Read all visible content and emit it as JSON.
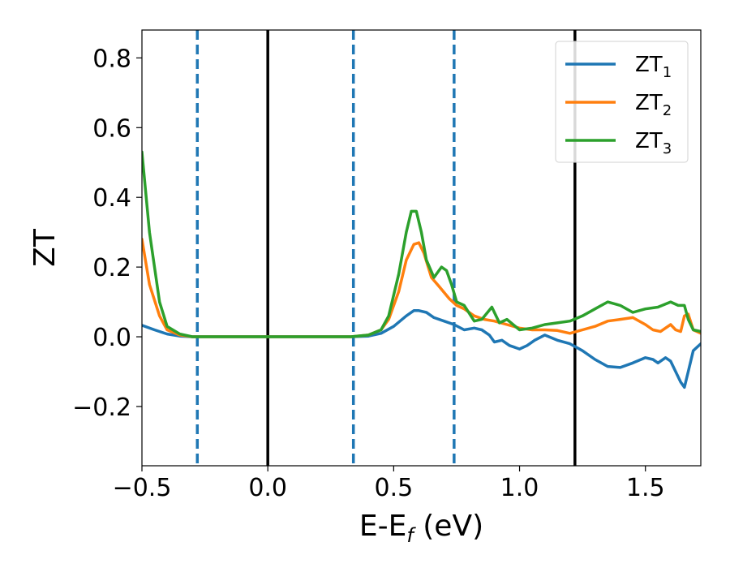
{
  "chart_data": {
    "type": "line",
    "title": "",
    "xlabel": "E-E",
    "xlabel_sub": "f",
    "xlabel_suffix": " (eV)",
    "ylabel": "ZT",
    "xlim": [
      -0.5,
      1.72
    ],
    "ylim": [
      -0.37,
      0.88
    ],
    "xticks": [
      -0.5,
      0.0,
      0.5,
      1.0,
      1.5
    ],
    "xtick_labels": [
      "−0.5",
      "0.0",
      "0.5",
      "1.0",
      "1.5"
    ],
    "yticks": [
      -0.2,
      0.0,
      0.2,
      0.4,
      0.6,
      0.8
    ],
    "ytick_labels": [
      "−0.2",
      "0.0",
      "0.2",
      "0.4",
      "0.6",
      "0.8"
    ],
    "grid": false,
    "legend_position": "top-right",
    "vlines": [
      {
        "x": -0.28,
        "style": "dashed",
        "color": "#1f77b4"
      },
      {
        "x": 0.0,
        "style": "solid",
        "color": "#000000"
      },
      {
        "x": 0.34,
        "style": "dashed",
        "color": "#1f77b4"
      },
      {
        "x": 0.74,
        "style": "dashed",
        "color": "#1f77b4"
      },
      {
        "x": 1.22,
        "style": "solid",
        "color": "#000000"
      }
    ],
    "series": [
      {
        "name": "ZT",
        "sub": "1",
        "color": "#1f77b4",
        "x": [
          -0.5,
          -0.45,
          -0.4,
          -0.35,
          -0.3,
          0.0,
          0.33,
          0.4,
          0.45,
          0.5,
          0.55,
          0.58,
          0.6,
          0.63,
          0.66,
          0.7,
          0.74,
          0.78,
          0.82,
          0.85,
          0.88,
          0.9,
          0.93,
          0.96,
          1.0,
          1.03,
          1.06,
          1.1,
          1.15,
          1.2,
          1.25,
          1.3,
          1.35,
          1.4,
          1.45,
          1.5,
          1.53,
          1.55,
          1.58,
          1.6,
          1.62,
          1.64,
          1.655,
          1.67,
          1.69,
          1.72
        ],
        "y": [
          0.033,
          0.02,
          0.008,
          0.002,
          0.0,
          0.0,
          0.0,
          0.002,
          0.01,
          0.03,
          0.06,
          0.075,
          0.075,
          0.07,
          0.055,
          0.045,
          0.035,
          0.02,
          0.025,
          0.02,
          0.005,
          -0.015,
          -0.01,
          -0.025,
          -0.035,
          -0.025,
          -0.01,
          0.005,
          -0.01,
          -0.02,
          -0.04,
          -0.065,
          -0.085,
          -0.088,
          -0.075,
          -0.06,
          -0.065,
          -0.075,
          -0.06,
          -0.07,
          -0.1,
          -0.13,
          -0.145,
          -0.1,
          -0.04,
          -0.02
        ]
      },
      {
        "name": "ZT",
        "sub": "2",
        "color": "#ff7f0e",
        "x": [
          -0.5,
          -0.47,
          -0.43,
          -0.4,
          -0.35,
          -0.3,
          0.0,
          0.33,
          0.4,
          0.45,
          0.48,
          0.52,
          0.55,
          0.58,
          0.6,
          0.62,
          0.65,
          0.68,
          0.72,
          0.75,
          0.78,
          0.82,
          0.86,
          0.9,
          0.95,
          1.0,
          1.05,
          1.1,
          1.15,
          1.2,
          1.25,
          1.3,
          1.35,
          1.4,
          1.45,
          1.5,
          1.53,
          1.56,
          1.6,
          1.62,
          1.64,
          1.655,
          1.67,
          1.69,
          1.72
        ],
        "y": [
          0.28,
          0.15,
          0.06,
          0.02,
          0.005,
          0.0,
          0.0,
          0.0,
          0.005,
          0.02,
          0.05,
          0.13,
          0.22,
          0.265,
          0.27,
          0.24,
          0.17,
          0.145,
          0.11,
          0.09,
          0.08,
          0.06,
          0.05,
          0.045,
          0.035,
          0.025,
          0.02,
          0.02,
          0.018,
          0.01,
          0.02,
          0.03,
          0.045,
          0.05,
          0.055,
          0.035,
          0.02,
          0.015,
          0.035,
          0.02,
          0.015,
          0.06,
          0.065,
          0.02,
          0.01
        ]
      },
      {
        "name": "ZT",
        "sub": "3",
        "color": "#2ca02c",
        "x": [
          -0.5,
          -0.47,
          -0.43,
          -0.4,
          -0.35,
          -0.3,
          0.0,
          0.33,
          0.4,
          0.45,
          0.48,
          0.52,
          0.55,
          0.57,
          0.59,
          0.61,
          0.63,
          0.66,
          0.69,
          0.71,
          0.73,
          0.75,
          0.78,
          0.82,
          0.85,
          0.89,
          0.92,
          0.95,
          1.0,
          1.05,
          1.1,
          1.15,
          1.2,
          1.25,
          1.3,
          1.35,
          1.4,
          1.45,
          1.5,
          1.55,
          1.6,
          1.63,
          1.655,
          1.67,
          1.69,
          1.72
        ],
        "y": [
          0.53,
          0.3,
          0.1,
          0.03,
          0.008,
          0.0,
          0.0,
          0.0,
          0.005,
          0.02,
          0.06,
          0.18,
          0.3,
          0.36,
          0.36,
          0.3,
          0.22,
          0.17,
          0.2,
          0.19,
          0.15,
          0.1,
          0.09,
          0.045,
          0.05,
          0.085,
          0.04,
          0.05,
          0.02,
          0.025,
          0.035,
          0.04,
          0.045,
          0.06,
          0.08,
          0.1,
          0.09,
          0.07,
          0.08,
          0.085,
          0.1,
          0.09,
          0.09,
          0.05,
          0.02,
          0.015
        ]
      }
    ]
  }
}
